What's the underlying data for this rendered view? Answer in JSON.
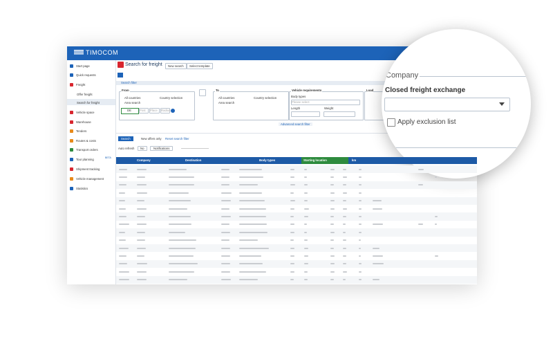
{
  "header": {
    "logo": "TIMOCOM"
  },
  "sidebar": {
    "items": [
      "Start page",
      "Quick requests",
      "Freight",
      "Offer freight",
      "Search for freight",
      "Vehicle space",
      "Warehouse",
      "Tenders",
      "Routes & costs",
      "Transport orders",
      "Tour planning",
      "Shipment tracking",
      "Vehicle management",
      "Statistics"
    ],
    "badge": "BETA"
  },
  "page": {
    "title": "Search for freight",
    "buttons": [
      "New search",
      "Select template"
    ]
  },
  "filter": {
    "title": "Search filter",
    "from": {
      "title": "From",
      "options": [
        "All countries",
        "Country selection",
        "Area search"
      ],
      "country": "DE",
      "fields": [
        "Post",
        "Place",
        "Radius"
      ]
    },
    "to": {
      "title": "To",
      "options": [
        "All countries",
        "Country selection",
        "Area search"
      ]
    },
    "vehicle": {
      "title": "Vehicle requirements",
      "body_types": "Body types",
      "placeholder": "Please select",
      "length": "Length",
      "weight": "Weight"
    },
    "load": "Load",
    "advanced": "Advanced search filter"
  },
  "actions": {
    "search": "Search",
    "new_offers": "New offers only",
    "reset": "Reset search filter",
    "auto_refresh": "Auto refresh",
    "no": "No",
    "notifications": "Notifications"
  },
  "table": {
    "headers": [
      "Company",
      "Destination",
      "Body types",
      "Starting location",
      "km"
    ]
  },
  "zoom": {
    "legend": "Company",
    "label": "Closed freight exchange",
    "checkbox": "Apply exclusion list"
  }
}
